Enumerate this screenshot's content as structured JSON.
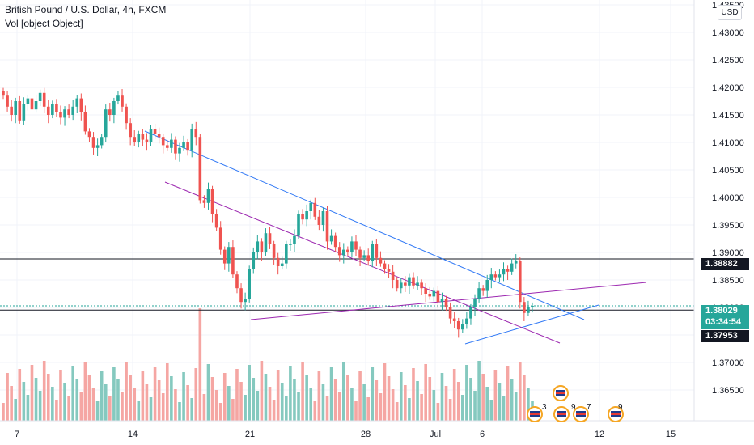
{
  "legend": {
    "title": "British Pound / U.S. Dollar, 4h, FXCM",
    "indicator": "Vol [object Object]"
  },
  "currency_button": "USD",
  "price_axis": {
    "ticks": [
      "1.43500",
      "1.43000",
      "1.42500",
      "1.42000",
      "1.41500",
      "1.41000",
      "1.40500",
      "1.40000",
      "1.39500",
      "1.39000",
      "1.38500",
      "1.38000",
      "1.37500",
      "1.37000",
      "1.36500"
    ]
  },
  "time_axis": {
    "ticks": [
      "7",
      "14",
      "21",
      "28",
      "Jul",
      "6",
      "12",
      "15"
    ]
  },
  "price_labels": {
    "resistance": "1.38882",
    "current": "1.38029",
    "countdown": "03:34:54",
    "support": "1.37953"
  },
  "event_badges": [
    "3",
    "9",
    "7",
    "9"
  ],
  "colors": {
    "up": "#26a69a",
    "down": "#ef5350",
    "vol_up": "#85c9bf",
    "vol_down": "#f5a6a3",
    "trendline_blue": "#3179f5",
    "trendline_purple": "#9c27b0"
  },
  "chart_data": {
    "type": "candlestick",
    "symbol": "GBPUSD",
    "timeframe": "4h",
    "ylim": [
      1.3625,
      1.435
    ],
    "closes": [
      1.4185,
      1.4165,
      1.415,
      1.4175,
      1.414,
      1.417,
      1.418,
      1.416,
      1.4175,
      1.419,
      1.4165,
      1.415,
      1.417,
      1.4155,
      1.4145,
      1.416,
      1.415,
      1.4165,
      1.418,
      1.4155,
      1.412,
      1.411,
      1.409,
      1.4095,
      1.411,
      1.416,
      1.415,
      1.4175,
      1.4185,
      1.4165,
      1.4135,
      1.411,
      1.41,
      1.4115,
      1.4105,
      1.41,
      1.4125,
      1.4115,
      1.411,
      1.4095,
      1.409,
      1.4105,
      1.408,
      1.409,
      1.41,
      1.4085,
      1.4125,
      1.411,
      1.3995,
      1.399,
      1.4015,
      1.397,
      1.3945,
      1.3905,
      1.388,
      1.391,
      1.386,
      1.3835,
      1.381,
      1.3815,
      1.387,
      1.39,
      1.392,
      1.39,
      1.3935,
      1.3915,
      1.389,
      1.3875,
      1.388,
      1.3915,
      1.3915,
      1.393,
      1.397,
      1.396,
      1.3975,
      1.399,
      1.3965,
      1.395,
      1.3975,
      1.392,
      1.393,
      1.391,
      1.3895,
      1.3905,
      1.39,
      1.392,
      1.3905,
      1.389,
      1.3895,
      1.3885,
      1.3915,
      1.389,
      1.388,
      1.387,
      1.3865,
      1.385,
      1.3835,
      1.3845,
      1.384,
      1.3855,
      1.384,
      1.3845,
      1.3835,
      1.3825,
      1.382,
      1.383,
      1.381,
      1.3815,
      1.38,
      1.378,
      1.3775,
      1.376,
      1.377,
      1.378,
      1.38,
      1.3815,
      1.3835,
      1.383,
      1.385,
      1.386,
      1.3855,
      1.386,
      1.387,
      1.3865,
      1.388,
      1.3885,
      1.381,
      1.379,
      1.38,
      1.3803
    ]
  }
}
